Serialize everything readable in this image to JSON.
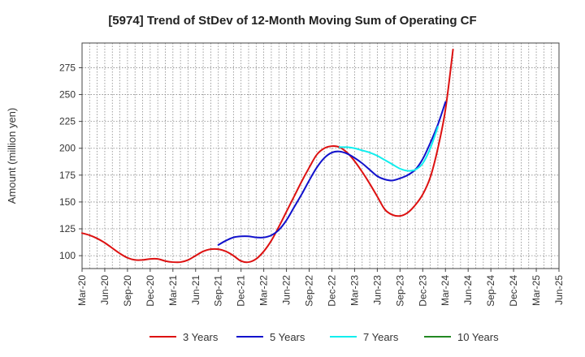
{
  "chart_data": {
    "type": "line",
    "title": "[5974]  Trend of StDev of 12-Month Moving Sum of Operating CF",
    "xlabel": "",
    "ylabel": "Amount (million yen)",
    "ylim": [
      88,
      298
    ],
    "yticks": [
      100,
      125,
      150,
      175,
      200,
      225,
      250,
      275
    ],
    "x_tick_labels": [
      "Mar-20",
      "Jun-20",
      "Sep-20",
      "Dec-20",
      "Mar-21",
      "Jun-21",
      "Sep-21",
      "Dec-21",
      "Mar-22",
      "Jun-22",
      "Sep-22",
      "Dec-22",
      "Mar-23",
      "Jun-23",
      "Sep-23",
      "Dec-23",
      "Mar-24",
      "Jun-24",
      "Sep-24",
      "Dec-24",
      "Mar-25",
      "Jun-25"
    ],
    "grid": true,
    "legend_position": "bottom",
    "series": [
      {
        "name": "3 Years",
        "color": "#dd1111",
        "start_index": 0,
        "values": [
          121,
          119,
          116,
          112,
          107,
          102,
          98,
          96,
          96,
          97,
          97,
          95,
          94,
          94,
          96,
          100,
          104,
          106,
          106,
          104,
          100,
          95,
          94,
          97,
          104,
          114,
          127,
          141,
          155,
          169,
          182,
          194,
          200,
          202,
          201,
          196,
          188,
          178,
          167,
          155,
          143,
          138,
          137,
          140,
          147,
          157,
          173,
          200,
          236,
          292
        ]
      },
      {
        "name": "5 Years",
        "color": "#1111cc",
        "start_index": 18,
        "values": [
          110,
          114,
          117,
          118,
          118,
          117,
          117,
          119,
          124,
          133,
          145,
          157,
          170,
          182,
          191,
          196,
          197,
          195,
          191,
          186,
          180,
          174,
          171,
          170,
          172,
          175,
          180,
          190,
          205,
          222,
          243
        ]
      },
      {
        "name": "7 Years",
        "color": "#11eeee",
        "start_index": 34,
        "values": [
          201,
          201,
          200,
          198,
          196,
          193,
          189,
          185,
          181,
          179,
          180,
          186,
          200,
          220
        ]
      },
      {
        "name": "10 Years",
        "color": "#228822",
        "start_index": 0,
        "values": []
      }
    ]
  }
}
